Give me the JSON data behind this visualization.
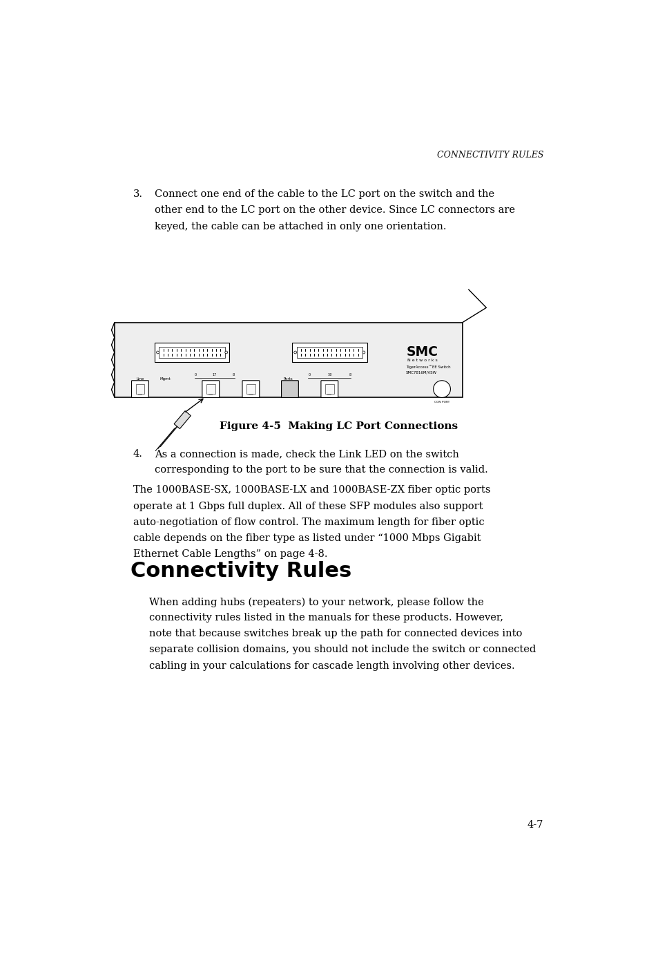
{
  "background_color": "#ffffff",
  "page_width": 9.54,
  "page_height": 13.88,
  "header_text": "CONNECTIVITY RULES",
  "item3_number": "3.",
  "item3_text_line1": "Connect one end of the cable to the LC port on the switch and the",
  "item3_text_line2": "other end to the LC port on the other device. Since LC connectors are",
  "item3_text_line3": "keyed, the cable can be attached in only one orientation.",
  "figure_caption": "Figure 4-5  Making LC Port Connections",
  "item4_number": "4.",
  "item4_text_line1": "As a connection is made, check the Link LED on the switch",
  "item4_text_line2": "corresponding to the port to be sure that the connection is valid.",
  "para1_line1": "The 1000BASE-SX, 1000BASE-LX and 1000BASE-ZX fiber optic ports",
  "para1_line2": "operate at 1 Gbps full duplex. All of these SFP modules also support",
  "para1_line3": "auto-negotiation of flow control. The maximum length for fiber optic",
  "para1_line4": "cable depends on the fiber type as listed under “1000 Mbps Gigabit",
  "para1_line5": "Ethernet Cable Lengths” on page 4-8.",
  "section_title": "Connectivity Rules",
  "para2_line1": "When adding hubs (repeaters) to your network, please follow the",
  "para2_line2": "connectivity rules listed in the manuals for these products. However,",
  "para2_line3": "note that because switches break up the path for connected devices into",
  "para2_line4": "separate collision domains, you should not include the switch or connected",
  "para2_line5": "cabling in your calculations for cascade length involving other devices.",
  "page_number": "4-7"
}
